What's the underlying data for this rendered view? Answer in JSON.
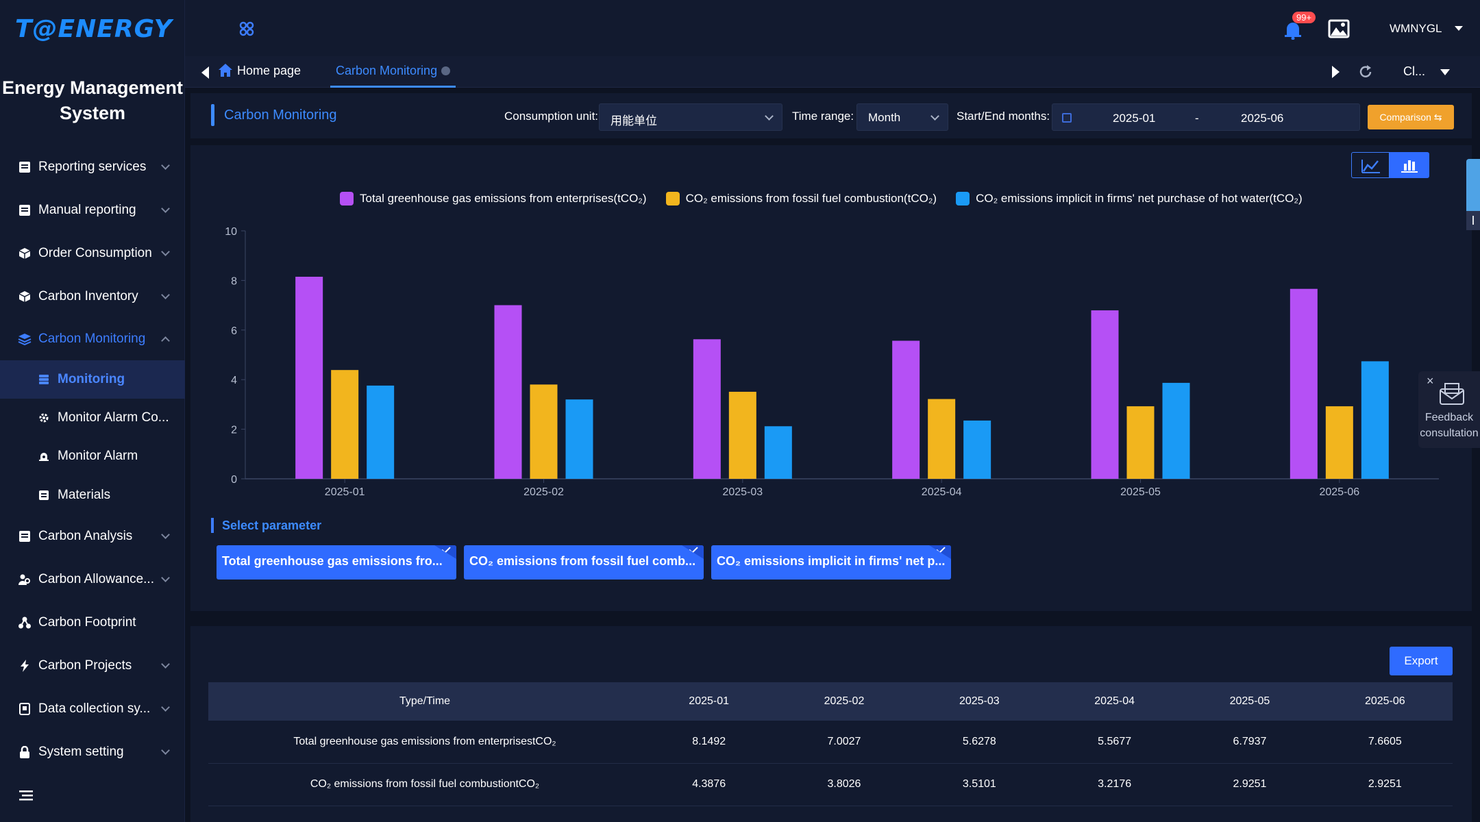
{
  "app": {
    "logo": "T@ENERGY",
    "system_title": "Energy Management System"
  },
  "sidebar": {
    "items": [
      {
        "label": "Reporting services",
        "icon": "document-icon"
      },
      {
        "label": "Manual reporting",
        "icon": "document-icon"
      },
      {
        "label": "Order Consumption",
        "icon": "cube-icon"
      },
      {
        "label": "Carbon Inventory",
        "icon": "cube-icon"
      },
      {
        "label": "Carbon Monitoring",
        "icon": "layers-icon"
      },
      {
        "label": "Monitoring",
        "icon": "server-icon"
      },
      {
        "label": "Monitor Alarm Co...",
        "icon": "gear-icon"
      },
      {
        "label": "Monitor Alarm",
        "icon": "alarm-icon"
      },
      {
        "label": "Materials",
        "icon": "document-icon"
      },
      {
        "label": "Carbon Analysis",
        "icon": "document-icon"
      },
      {
        "label": "Carbon Allowance...",
        "icon": "people-icon"
      },
      {
        "label": "Carbon Footprint",
        "icon": "footprint-icon"
      },
      {
        "label": "Carbon Projects",
        "icon": "bolt-icon"
      },
      {
        "label": "Data collection sy...",
        "icon": "database-icon"
      },
      {
        "label": "System setting",
        "icon": "lock-icon"
      }
    ]
  },
  "header": {
    "notification_badge": "99+",
    "username": "WMNYGL"
  },
  "tabs": {
    "home": "Home page",
    "current": "Carbon Monitoring",
    "overflow": "Cl..."
  },
  "filter": {
    "page_title": "Carbon Monitoring",
    "unit_label": "Consumption unit:",
    "unit_value": "用能单位",
    "range_label": "Time range:",
    "range_value": "Month",
    "months_label": "Start/End months:",
    "start": "2025-01",
    "separator": "-",
    "end": "2025-06",
    "compare_label": "Comparison ⇆"
  },
  "legend": {
    "s1": "Total greenhouse gas emissions from enterprises(tCO₂)",
    "s2": "CO₂ emissions from fossil fuel combustion(tCO₂)",
    "s3": "CO₂ emissions implicit in firms' net purchase of hot water(tCO₂)"
  },
  "chart_data": {
    "type": "bar",
    "categories": [
      "2025-01",
      "2025-02",
      "2025-03",
      "2025-04",
      "2025-05",
      "2025-06"
    ],
    "ylim": [
      0,
      10
    ],
    "yticks": [
      0,
      2,
      4,
      6,
      8,
      10
    ],
    "series": [
      {
        "name": "Total greenhouse gas emissions from enterprises(tCO₂)",
        "color": "#b550f5",
        "values": [
          8.1492,
          7.0027,
          5.6278,
          5.5677,
          6.7937,
          7.6605
        ]
      },
      {
        "name": "CO₂ emissions from fossil fuel combustion(tCO₂)",
        "color": "#f2b51e",
        "values": [
          4.3876,
          3.8026,
          3.5101,
          3.2176,
          2.9251,
          2.9251
        ]
      },
      {
        "name": "CO₂ emissions implicit in firms' net purchase of hot water(tCO₂)",
        "color": "#1a9af5",
        "values": [
          3.76,
          3.2,
          2.12,
          2.35,
          3.87,
          4.74
        ]
      }
    ]
  },
  "params": {
    "title": "Select parameter",
    "p1": "Total greenhouse gas emissions fro...",
    "p2": "CO₂ emissions from fossil fuel comb...",
    "p3": "CO₂ emissions implicit in firms' net p..."
  },
  "feedback": {
    "close": "×",
    "label": "Feedback consultation"
  },
  "table": {
    "export_label": "Export",
    "headers": [
      "Type/Time",
      "2025-01",
      "2025-02",
      "2025-03",
      "2025-04",
      "2025-05",
      "2025-06"
    ],
    "rows": [
      [
        "Total greenhouse gas emissions from enterprisestCO₂",
        "8.1492",
        "7.0027",
        "5.6278",
        "5.5677",
        "6.7937",
        "7.6605"
      ],
      [
        "CO₂ emissions from fossil fuel combustiontCO₂",
        "4.3876",
        "3.8026",
        "3.5101",
        "3.2176",
        "2.9251",
        "2.9251"
      ]
    ]
  }
}
